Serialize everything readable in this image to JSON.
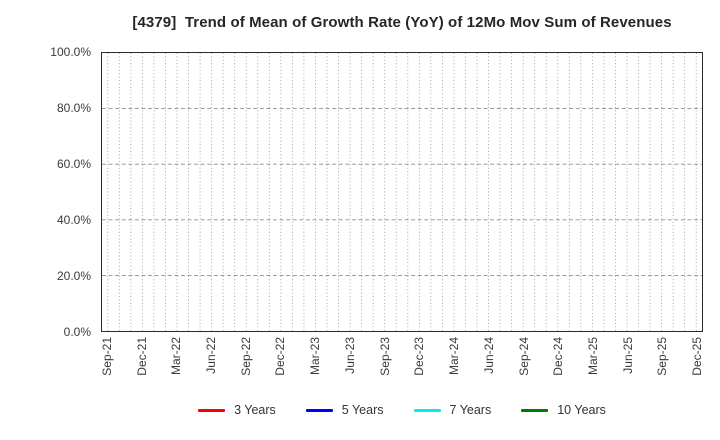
{
  "colors": {
    "background": "#ffffff",
    "frame": "#2a2a2a",
    "grid_minor": "#9c9c9c",
    "grid_major": "#8f8f8f",
    "text": "#3a3a3a"
  },
  "chart_data": {
    "type": "line",
    "title": "[4379]  Trend of Mean of Growth Rate (YoY) of 12Mo Mov Sum of Revenues",
    "xlabel": "",
    "ylabel": "",
    "ylim": [
      0,
      100
    ],
    "y_tick_labels": [
      "0.0%",
      "20.0%",
      "40.0%",
      "60.0%",
      "80.0%",
      "100.0%"
    ],
    "x_tick_labels": [
      "Sep-21",
      "Dec-21",
      "Mar-22",
      "Jun-22",
      "Sep-22",
      "Dec-22",
      "Mar-23",
      "Jun-23",
      "Sep-23",
      "Dec-23",
      "Mar-24",
      "Jun-24",
      "Sep-24",
      "Dec-24",
      "Mar-25",
      "Jun-25",
      "Sep-25",
      "Dec-25"
    ],
    "months_per_x_tick": 3,
    "minor_x_grid_interval_months": 1,
    "grid": "on",
    "legend_position": "bottom-center",
    "series": [
      {
        "name": "3 Years",
        "color": "#ff0000",
        "values": []
      },
      {
        "name": "5 Years",
        "color": "#0000ff",
        "values": []
      },
      {
        "name": "7 Years",
        "color": "#00eeee",
        "values": []
      },
      {
        "name": "10 Years",
        "color": "#007d00",
        "values": []
      }
    ],
    "plot_note": "no data points are rendered; empty grid with legend only"
  }
}
